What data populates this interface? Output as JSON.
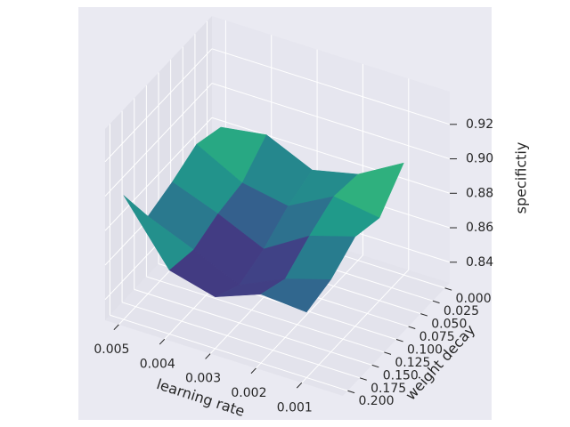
{
  "chart_data": {
    "type": "surface",
    "x_label": "learning rate",
    "y_label": "weight decay",
    "z_label": "specifictiy",
    "x": [
      0.001,
      0.002,
      0.003,
      0.004,
      0.005
    ],
    "y": [
      0,
      0.05,
      0.1,
      0.15,
      0.2
    ],
    "z": [
      [
        0.893,
        0.878,
        0.872,
        0.884,
        0.88
      ],
      [
        0.876,
        0.88,
        0.866,
        0.871,
        0.885
      ],
      [
        0.88,
        0.872,
        0.856,
        0.868,
        0.878
      ],
      [
        0.87,
        0.862,
        0.85,
        0.862,
        0.873
      ],
      [
        0.866,
        0.868,
        0.858,
        0.865,
        0.9
      ]
    ],
    "xlim": [
      0.0001,
      0.0053
    ],
    "ylim": [
      -0.01,
      0.21
    ],
    "zlim": [
      0.828,
      0.939
    ],
    "xticks": [
      0.001,
      0.002,
      0.003,
      0.004,
      0.005
    ],
    "yticks": [
      {
        "value": 0,
        "label": "0.000"
      },
      0.025,
      {
        "value": 0.05,
        "label": "0.050"
      },
      0.075,
      {
        "value": 0.1,
        "label": "0.100"
      },
      0.125,
      {
        "value": 0.15,
        "label": "0.150"
      },
      0.175,
      {
        "value": 0.2,
        "label": "0.200"
      }
    ],
    "zticks": [
      0.84,
      0.86,
      0.88,
      {
        "value": 0.9,
        "label": "0.90"
      },
      0.92
    ],
    "colormap": "viridis",
    "grid": true
  }
}
